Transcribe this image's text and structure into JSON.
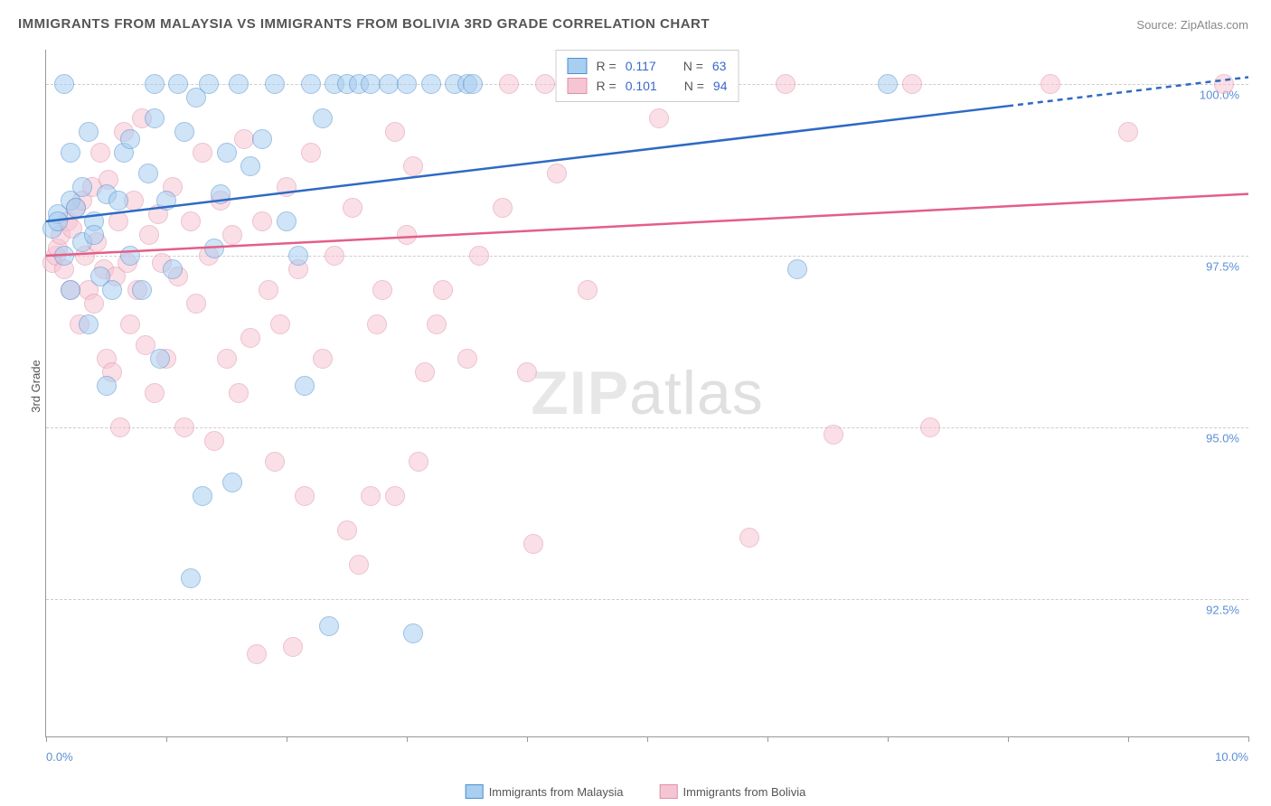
{
  "title": "IMMIGRANTS FROM MALAYSIA VS IMMIGRANTS FROM BOLIVIA 3RD GRADE CORRELATION CHART",
  "source_label": "Source:",
  "source_name": "ZipAtlas.com",
  "y_axis_label": "3rd Grade",
  "watermark_bold": "ZIP",
  "watermark_thin": "atlas",
  "chart": {
    "type": "scatter",
    "xlim": [
      0,
      10
    ],
    "ylim": [
      90.5,
      100.5
    ],
    "x_ticks": [
      0,
      1,
      2,
      3,
      4,
      5,
      6,
      7,
      8,
      9,
      10
    ],
    "y_ticks": [
      92.5,
      95.0,
      97.5,
      100.0
    ],
    "y_tick_labels": [
      "92.5%",
      "95.0%",
      "97.5%",
      "100.0%"
    ],
    "x_min_label": "0.0%",
    "x_max_label": "10.0%",
    "background_color": "#ffffff",
    "grid_color": "#cccccc",
    "axis_color": "#999999",
    "value_color": "#3868c8",
    "label_color": "#555555",
    "marker_radius": 10,
    "marker_opacity": 0.55,
    "line_width": 2.5,
    "title_fontsize": 15,
    "axis_fontsize": 13,
    "series": [
      {
        "name": "Immigrants from Malaysia",
        "fill_color": "#a8cef0",
        "stroke_color": "#4f8fd0",
        "line_color": "#2e6ac4",
        "R": "0.117",
        "N": "63",
        "trend": {
          "x1": 0,
          "y1": 98.0,
          "x2": 10,
          "y2": 100.1,
          "dash_from_x": 8.0
        },
        "points": [
          [
            0.05,
            97.9
          ],
          [
            0.1,
            98.1
          ],
          [
            0.1,
            98.0
          ],
          [
            0.15,
            97.5
          ],
          [
            0.15,
            100.0
          ],
          [
            0.2,
            98.3
          ],
          [
            0.2,
            99.0
          ],
          [
            0.2,
            97.0
          ],
          [
            0.25,
            98.2
          ],
          [
            0.3,
            98.5
          ],
          [
            0.3,
            97.7
          ],
          [
            0.35,
            96.5
          ],
          [
            0.35,
            99.3
          ],
          [
            0.4,
            98.0
          ],
          [
            0.4,
            97.8
          ],
          [
            0.45,
            97.2
          ],
          [
            0.5,
            95.6
          ],
          [
            0.5,
            98.4
          ],
          [
            0.55,
            97.0
          ],
          [
            0.6,
            98.3
          ],
          [
            0.65,
            99.0
          ],
          [
            0.7,
            99.2
          ],
          [
            0.7,
            97.5
          ],
          [
            0.8,
            97.0
          ],
          [
            0.85,
            98.7
          ],
          [
            0.9,
            99.5
          ],
          [
            0.9,
            100.0
          ],
          [
            0.95,
            96.0
          ],
          [
            1.0,
            98.3
          ],
          [
            1.05,
            97.3
          ],
          [
            1.1,
            100.0
          ],
          [
            1.15,
            99.3
          ],
          [
            1.2,
            92.8
          ],
          [
            1.25,
            99.8
          ],
          [
            1.3,
            94.0
          ],
          [
            1.35,
            100.0
          ],
          [
            1.4,
            97.6
          ],
          [
            1.45,
            98.4
          ],
          [
            1.5,
            99.0
          ],
          [
            1.55,
            94.2
          ],
          [
            1.6,
            100.0
          ],
          [
            1.7,
            98.8
          ],
          [
            1.8,
            99.2
          ],
          [
            1.9,
            100.0
          ],
          [
            2.0,
            98.0
          ],
          [
            2.1,
            97.5
          ],
          [
            2.15,
            95.6
          ],
          [
            2.2,
            100.0
          ],
          [
            2.3,
            99.5
          ],
          [
            2.35,
            92.1
          ],
          [
            2.4,
            100.0
          ],
          [
            2.5,
            100.0
          ],
          [
            2.6,
            100.0
          ],
          [
            2.7,
            100.0
          ],
          [
            2.85,
            100.0
          ],
          [
            3.0,
            100.0
          ],
          [
            3.05,
            92.0
          ],
          [
            3.2,
            100.0
          ],
          [
            3.4,
            100.0
          ],
          [
            3.5,
            100.0
          ],
          [
            3.55,
            100.0
          ],
          [
            6.25,
            97.3
          ],
          [
            7.0,
            100.0
          ]
        ]
      },
      {
        "name": "Immigrants from Bolivia",
        "fill_color": "#f6c5d4",
        "stroke_color": "#e08fa8",
        "line_color": "#e45e87",
        "R": "0.101",
        "N": "94",
        "trend": {
          "x1": 0,
          "y1": 97.5,
          "x2": 10,
          "y2": 98.4,
          "dash_from_x": null
        },
        "points": [
          [
            0.05,
            97.4
          ],
          [
            0.08,
            97.5
          ],
          [
            0.1,
            97.6
          ],
          [
            0.12,
            97.8
          ],
          [
            0.15,
            97.3
          ],
          [
            0.18,
            98.0
          ],
          [
            0.2,
            97.0
          ],
          [
            0.22,
            97.9
          ],
          [
            0.25,
            98.2
          ],
          [
            0.28,
            96.5
          ],
          [
            0.3,
            98.3
          ],
          [
            0.32,
            97.5
          ],
          [
            0.35,
            97.0
          ],
          [
            0.38,
            98.5
          ],
          [
            0.4,
            96.8
          ],
          [
            0.42,
            97.7
          ],
          [
            0.45,
            99.0
          ],
          [
            0.48,
            97.3
          ],
          [
            0.5,
            96.0
          ],
          [
            0.52,
            98.6
          ],
          [
            0.55,
            95.8
          ],
          [
            0.58,
            97.2
          ],
          [
            0.6,
            98.0
          ],
          [
            0.62,
            95.0
          ],
          [
            0.65,
            99.3
          ],
          [
            0.68,
            97.4
          ],
          [
            0.7,
            96.5
          ],
          [
            0.73,
            98.3
          ],
          [
            0.76,
            97.0
          ],
          [
            0.8,
            99.5
          ],
          [
            0.83,
            96.2
          ],
          [
            0.86,
            97.8
          ],
          [
            0.9,
            95.5
          ],
          [
            0.93,
            98.1
          ],
          [
            0.96,
            97.4
          ],
          [
            1.0,
            96.0
          ],
          [
            1.05,
            98.5
          ],
          [
            1.1,
            97.2
          ],
          [
            1.15,
            95.0
          ],
          [
            1.2,
            98.0
          ],
          [
            1.25,
            96.8
          ],
          [
            1.3,
            99.0
          ],
          [
            1.35,
            97.5
          ],
          [
            1.4,
            94.8
          ],
          [
            1.45,
            98.3
          ],
          [
            1.5,
            96.0
          ],
          [
            1.55,
            97.8
          ],
          [
            1.6,
            95.5
          ],
          [
            1.65,
            99.2
          ],
          [
            1.7,
            96.3
          ],
          [
            1.75,
            91.7
          ],
          [
            1.8,
            98.0
          ],
          [
            1.85,
            97.0
          ],
          [
            1.9,
            94.5
          ],
          [
            1.95,
            96.5
          ],
          [
            2.0,
            98.5
          ],
          [
            2.05,
            91.8
          ],
          [
            2.1,
            97.3
          ],
          [
            2.15,
            94.0
          ],
          [
            2.2,
            99.0
          ],
          [
            2.3,
            96.0
          ],
          [
            2.4,
            97.5
          ],
          [
            2.5,
            93.5
          ],
          [
            2.55,
            98.2
          ],
          [
            2.6,
            93.0
          ],
          [
            2.7,
            94.0
          ],
          [
            2.75,
            96.5
          ],
          [
            2.8,
            97.0
          ],
          [
            2.9,
            99.3
          ],
          [
            2.9,
            94.0
          ],
          [
            3.0,
            97.8
          ],
          [
            3.05,
            98.8
          ],
          [
            3.1,
            94.5
          ],
          [
            3.15,
            95.8
          ],
          [
            3.25,
            96.5
          ],
          [
            3.3,
            97.0
          ],
          [
            3.5,
            96.0
          ],
          [
            3.6,
            97.5
          ],
          [
            3.8,
            98.2
          ],
          [
            3.85,
            100.0
          ],
          [
            4.0,
            95.8
          ],
          [
            4.05,
            93.3
          ],
          [
            4.15,
            100.0
          ],
          [
            4.25,
            98.7
          ],
          [
            4.5,
            97.0
          ],
          [
            5.1,
            99.5
          ],
          [
            5.85,
            93.4
          ],
          [
            6.15,
            100.0
          ],
          [
            6.55,
            94.9
          ],
          [
            7.2,
            100.0
          ],
          [
            7.35,
            95.0
          ],
          [
            8.35,
            100.0
          ],
          [
            9.0,
            99.3
          ],
          [
            9.8,
            100.0
          ]
        ]
      }
    ]
  },
  "stats_box": {
    "r_label": "R =",
    "n_label": "N ="
  },
  "legend_bottom": {
    "malaysia": "Immigrants from Malaysia",
    "bolivia": "Immigrants from Bolivia"
  }
}
